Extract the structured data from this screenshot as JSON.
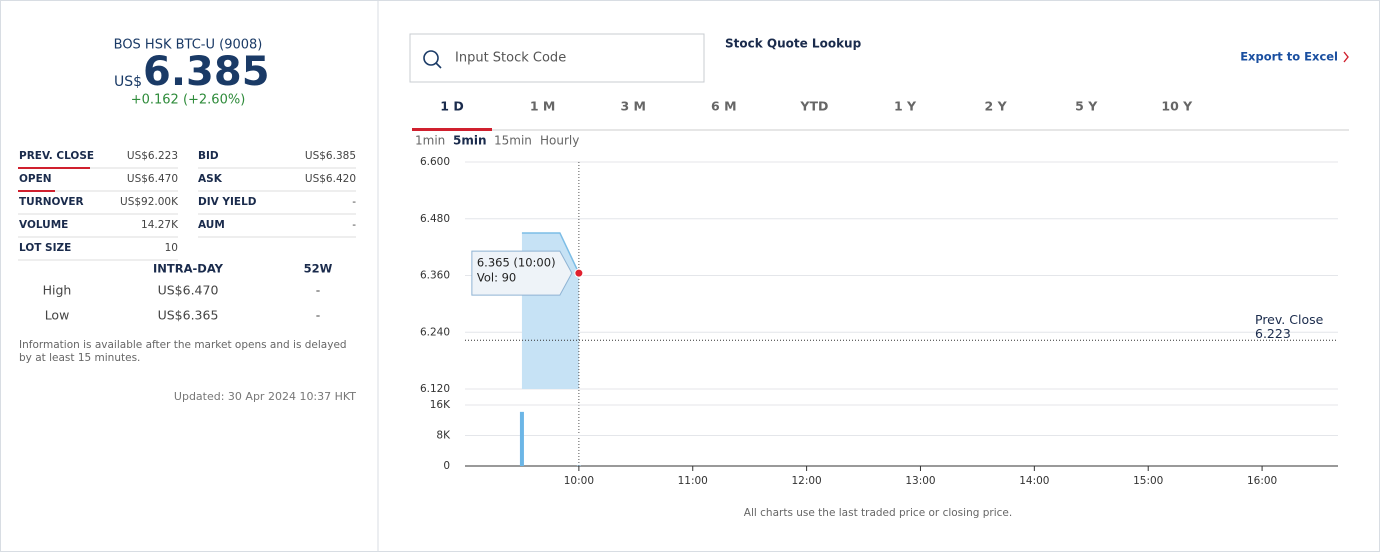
{
  "quote": {
    "name": "BOS HSK BTC-U (9008)",
    "currency": "US$",
    "price": "6.385",
    "change": "+0.162 (+2.60%)"
  },
  "stats": [
    [
      "PREV. CLOSE",
      "US$6.223",
      "BID",
      "US$6.385"
    ],
    [
      "OPEN",
      "US$6.470",
      "ASK",
      "US$6.420"
    ],
    [
      "TURNOVER",
      "US$92.00K",
      "DIV YIELD",
      "-"
    ],
    [
      "VOLUME",
      "14.27K",
      "AUM",
      "-"
    ],
    [
      "LOT SIZE",
      "10"
    ]
  ],
  "range": {
    "headers": [
      "INTRA-DAY",
      "52W"
    ],
    "rows": [
      [
        "High",
        "US$6.470",
        "-"
      ],
      [
        "Low",
        "US$6.365",
        "-"
      ]
    ]
  },
  "note": "Information is available after the market opens and is delayed by at least 15 minutes.",
  "updated": "Updated: 30 Apr 2024 10:37 HKT",
  "search_placeholder": "Input Stock Code",
  "lookup": "Stock Quote Lookup",
  "export": "Export to Excel",
  "tabs": [
    "1 D",
    "1 M",
    "3 M",
    "6 M",
    "YTD",
    "1 Y",
    "2 Y",
    "5 Y",
    "10 Y"
  ],
  "selected_tab": "1 D",
  "intervals": [
    "1min",
    "5min",
    "15min",
    "Hourly"
  ],
  "selected_interval": "5min",
  "chart_data": [
    {
      "type": "area",
      "x": [
        "09:30",
        "09:50",
        "10:00"
      ],
      "values": [
        6.45,
        6.45,
        6.365
      ],
      "color": "#c6e2f5",
      "xlim": [
        "09:00",
        "16:40"
      ],
      "ylim": [
        6.12,
        6.6
      ],
      "yticks": [
        {
          "value": 6.12,
          "label": "6.120"
        },
        {
          "value": 6.24,
          "label": "6.240"
        },
        {
          "value": 6.36,
          "label": "6.360"
        },
        {
          "value": 6.48,
          "label": "6.480"
        },
        {
          "value": 6.6,
          "label": "6.600"
        }
      ],
      "grid": true,
      "reference_line": {
        "label": "Prev. Close",
        "value": 6.223
      },
      "tooltip": [
        "6.365 (10:00)",
        "Vol: 90"
      ]
    },
    {
      "type": "bar",
      "x": [
        "09:30",
        "10:00"
      ],
      "values": [
        14200,
        90
      ],
      "color": "#6cb6e6",
      "xlim": [
        "09:00",
        "16:40"
      ],
      "ylim": [
        0,
        16000
      ],
      "yticks": [
        0,
        {
          "value": 8000,
          "label": "8K"
        },
        {
          "value": 16000,
          "label": "16K"
        }
      ],
      "xticks": [
        "10:00",
        "11:00",
        "12:00",
        "13:00",
        "14:00",
        "15:00",
        "16:00"
      ],
      "grid": true
    }
  ],
  "footnote": "All charts use the last traded price or closing price."
}
